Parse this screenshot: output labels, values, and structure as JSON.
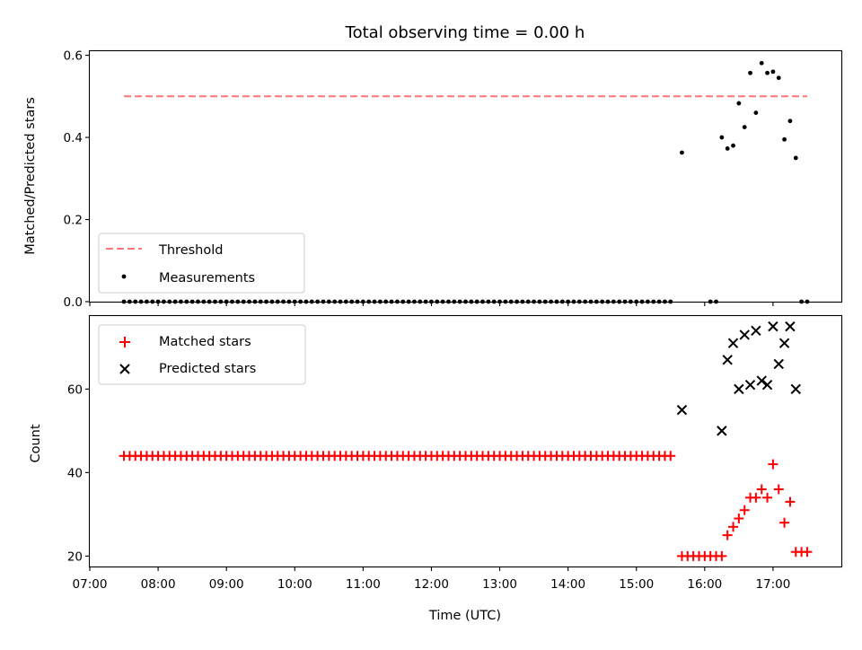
{
  "title": "Total observing time = 0.00 h",
  "chart_data": [
    {
      "type": "scatter",
      "ylabel": "Matched/Predicted stars",
      "xlabel": "",
      "xlim": [
        "07:00",
        "18:00"
      ],
      "ylim": [
        0,
        0.61
      ],
      "yticks": [
        0.0,
        0.2,
        0.4,
        0.6
      ],
      "ytick_labels": [
        "0.0",
        "0.2",
        "0.4",
        "0.6"
      ],
      "grid": false,
      "legend_position": "lower-left",
      "colors": {
        "threshold": "#ff7777",
        "measurements": "#000000"
      },
      "threshold": {
        "name": "Threshold",
        "value": 0.5,
        "x_start": "07:30",
        "x_end": "17:30"
      },
      "measurements": {
        "name": "Measurements",
        "zeros": {
          "x_start": "07:30",
          "step_min": 5,
          "count": 97,
          "extra": [
            "16:05",
            "16:10",
            "17:25",
            "17:30"
          ]
        },
        "points": [
          {
            "x": "15:40",
            "y": 0.363
          },
          {
            "x": "16:15",
            "y": 0.4
          },
          {
            "x": "16:20",
            "y": 0.373
          },
          {
            "x": "16:25",
            "y": 0.38
          },
          {
            "x": "16:30",
            "y": 0.483
          },
          {
            "x": "16:35",
            "y": 0.425
          },
          {
            "x": "16:40",
            "y": 0.557
          },
          {
            "x": "16:45",
            "y": 0.46
          },
          {
            "x": "16:50",
            "y": 0.581
          },
          {
            "x": "16:55",
            "y": 0.557
          },
          {
            "x": "17:00",
            "y": 0.56
          },
          {
            "x": "17:05",
            "y": 0.545
          },
          {
            "x": "17:10",
            "y": 0.395
          },
          {
            "x": "17:15",
            "y": 0.44
          },
          {
            "x": "17:20",
            "y": 0.35
          }
        ]
      }
    },
    {
      "type": "scatter",
      "ylabel": "Count",
      "xlabel": "Time (UTC)",
      "xlim": [
        "07:00",
        "18:00"
      ],
      "ylim": [
        17.5,
        77.5
      ],
      "yticks": [
        20,
        40,
        60
      ],
      "ytick_labels": [
        "20",
        "40",
        "60"
      ],
      "xticks": [
        "07:00",
        "08:00",
        "09:00",
        "10:00",
        "11:00",
        "12:00",
        "13:00",
        "14:00",
        "15:00",
        "16:00",
        "17:00"
      ],
      "grid": false,
      "legend_position": "upper-left",
      "colors": {
        "matched": "#ff0000",
        "predicted": "#000000"
      },
      "series": [
        {
          "name": "Matched stars",
          "marker": "+",
          "constant_run": {
            "x_start": "07:30",
            "step_min": 5,
            "count": 97,
            "value": 44
          },
          "points": [
            {
              "x": "15:40",
              "y": 20
            },
            {
              "x": "15:45",
              "y": 20
            },
            {
              "x": "15:50",
              "y": 20
            },
            {
              "x": "15:55",
              "y": 20
            },
            {
              "x": "16:00",
              "y": 20
            },
            {
              "x": "16:05",
              "y": 20
            },
            {
              "x": "16:10",
              "y": 20
            },
            {
              "x": "16:15",
              "y": 20
            },
            {
              "x": "16:20",
              "y": 25
            },
            {
              "x": "16:25",
              "y": 27
            },
            {
              "x": "16:30",
              "y": 29
            },
            {
              "x": "16:35",
              "y": 31
            },
            {
              "x": "16:40",
              "y": 34
            },
            {
              "x": "16:45",
              "y": 34
            },
            {
              "x": "16:50",
              "y": 36
            },
            {
              "x": "16:55",
              "y": 34
            },
            {
              "x": "17:00",
              "y": 42
            },
            {
              "x": "17:05",
              "y": 36
            },
            {
              "x": "17:10",
              "y": 28
            },
            {
              "x": "17:15",
              "y": 33
            },
            {
              "x": "17:20",
              "y": 21
            },
            {
              "x": "17:25",
              "y": 21
            },
            {
              "x": "17:30",
              "y": 21
            }
          ]
        },
        {
          "name": "Predicted stars",
          "marker": "x",
          "points": [
            {
              "x": "15:40",
              "y": 55
            },
            {
              "x": "16:15",
              "y": 50
            },
            {
              "x": "16:20",
              "y": 67
            },
            {
              "x": "16:25",
              "y": 71
            },
            {
              "x": "16:30",
              "y": 60
            },
            {
              "x": "16:35",
              "y": 73
            },
            {
              "x": "16:40",
              "y": 61
            },
            {
              "x": "16:45",
              "y": 74
            },
            {
              "x": "16:50",
              "y": 62
            },
            {
              "x": "16:55",
              "y": 61
            },
            {
              "x": "17:00",
              "y": 75
            },
            {
              "x": "17:05",
              "y": 66
            },
            {
              "x": "17:10",
              "y": 71
            },
            {
              "x": "17:15",
              "y": 75
            },
            {
              "x": "17:20",
              "y": 60
            }
          ]
        }
      ]
    }
  ]
}
